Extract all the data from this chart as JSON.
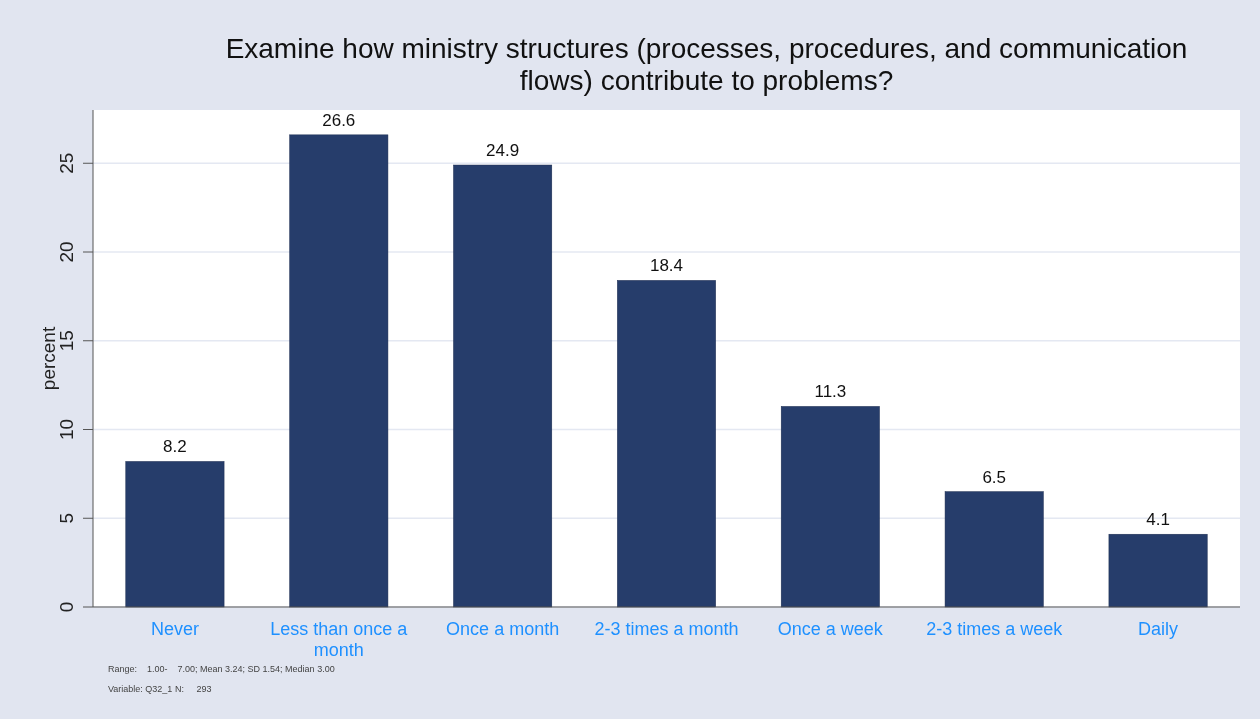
{
  "chart_data": {
    "type": "bar",
    "title": "Examine how ministry structures (processes, procedures, and communication flows) contribute to problems?",
    "ylabel": "percent",
    "categories": [
      "Never",
      "Less than once a month",
      "Once a month",
      "2-3 times a month",
      "Once a week",
      "2-3 times a week",
      "Daily"
    ],
    "values": [
      8.2,
      26.6,
      24.9,
      18.4,
      11.3,
      6.5,
      4.1
    ],
    "color": "#263d6b",
    "ylim": [
      0,
      28
    ],
    "yticks": [
      0,
      5,
      10,
      15,
      20,
      25
    ],
    "grid": "y",
    "data_labels": true,
    "annotations": [
      "Range:    1.00-    7.00; Mean 3.24; SD 1.54; Median 3.00",
      "Variable: Q32_1 N:     293"
    ]
  }
}
